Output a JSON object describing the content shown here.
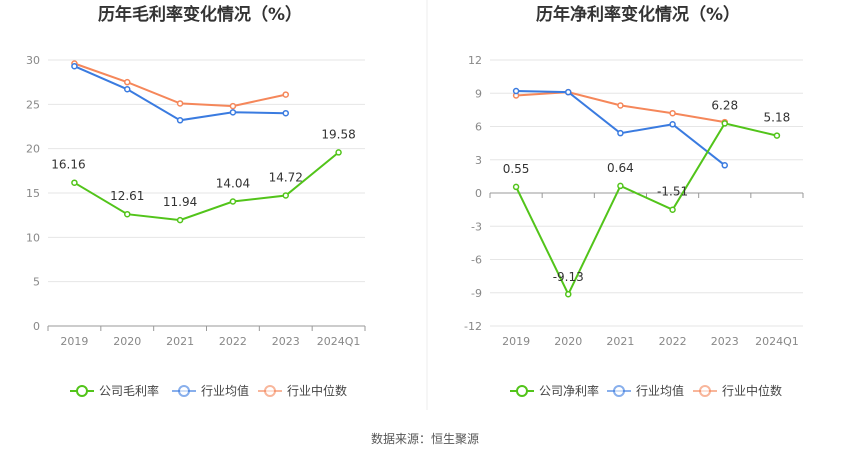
{
  "source": "数据来源：恒生聚源",
  "chart_data": [
    {
      "type": "line",
      "title": "历年毛利率变化情况（%）",
      "categories": [
        "2019",
        "2020",
        "2021",
        "2022",
        "2023",
        "2024Q1"
      ],
      "ylim": [
        0,
        30
      ],
      "yticks": [
        0,
        5,
        10,
        15,
        20,
        25,
        30
      ],
      "grid": true,
      "legend_position": "bottom",
      "series": [
        {
          "name": "公司毛利率",
          "color": "#52c41a",
          "values": [
            16.16,
            12.61,
            11.94,
            14.04,
            14.72,
            19.58
          ],
          "labels": [
            "16.16",
            "12.61",
            "11.94",
            "14.04",
            "14.72",
            "19.58"
          ]
        },
        {
          "name": "行业均值",
          "color": "#3a7be0",
          "values": [
            29.3,
            26.7,
            23.2,
            24.1,
            24.0,
            null
          ],
          "labels": []
        },
        {
          "name": "行业中位数",
          "color": "#f5875a",
          "values": [
            29.6,
            27.5,
            25.1,
            24.8,
            26.1,
            null
          ],
          "labels": []
        }
      ]
    },
    {
      "type": "line",
      "title": "历年净利率变化情况（%）",
      "categories": [
        "2019",
        "2020",
        "2021",
        "2022",
        "2023",
        "2024Q1"
      ],
      "ylim": [
        -12,
        12
      ],
      "yticks": [
        -12,
        -9,
        -6,
        -3,
        0,
        3,
        6,
        9,
        12
      ],
      "grid": true,
      "legend_position": "bottom",
      "series": [
        {
          "name": "公司净利率",
          "color": "#52c41a",
          "values": [
            0.55,
            -9.13,
            0.64,
            -1.51,
            6.28,
            5.18
          ],
          "labels": [
            "0.55",
            "-9.13",
            "0.64",
            "-1.51",
            "6.28",
            "5.18"
          ]
        },
        {
          "name": "行业均值",
          "color": "#3a7be0",
          "values": [
            9.2,
            9.1,
            5.4,
            6.2,
            2.5,
            null
          ],
          "labels": []
        },
        {
          "name": "行业中位数",
          "color": "#f5875a",
          "values": [
            8.8,
            9.1,
            7.9,
            7.2,
            6.4,
            null
          ],
          "labels": []
        }
      ]
    }
  ]
}
